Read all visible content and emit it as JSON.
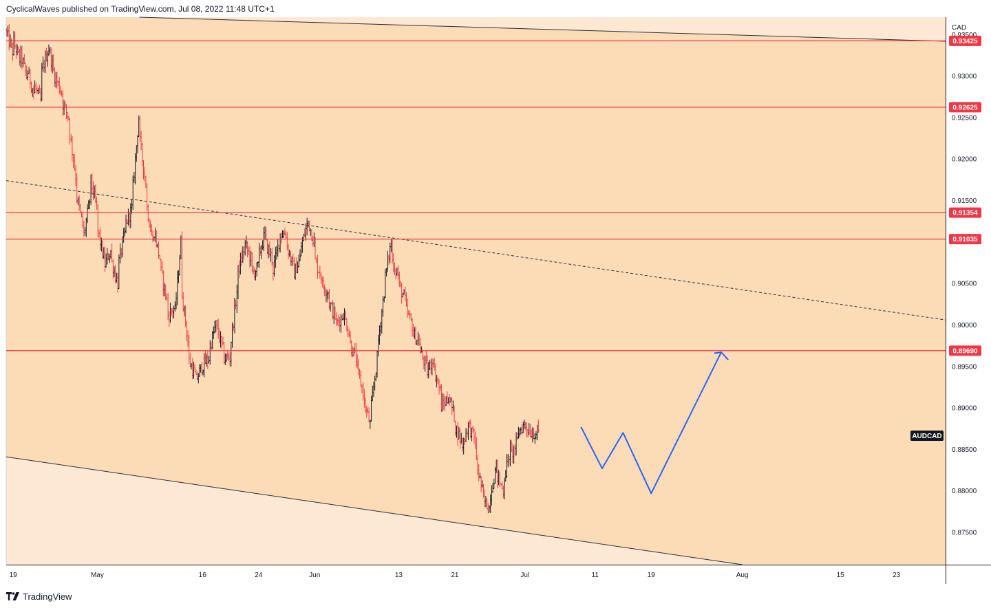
{
  "header": {
    "publish_line": "CyclicalWaves published on TradingView.com, Jul 08, 2022 11:48 UTC+1"
  },
  "footer": {
    "brand": "TradingView",
    "logo_icon": "tradingview-logo-icon"
  },
  "chart_data": {
    "type": "ohlc",
    "symbol": "AUDCAD",
    "currency": "CAD",
    "colors": {
      "channel_fill": "#fbdcb6",
      "outside_fill": "#fde8d4",
      "up_bar": "#131722",
      "down_bar": "#f23645",
      "level_line": "#f23645",
      "projection": "#2962ff",
      "label_dark": "#131722"
    },
    "y_axis": {
      "min": 0.8711,
      "max": 0.9371,
      "ticks": [
        "0.87500",
        "0.88000",
        "0.88500",
        "0.89000",
        "0.89500",
        "0.90000",
        "0.90500",
        "0.91500",
        "0.92000",
        "0.92500",
        "0.93000",
        "0.93500"
      ]
    },
    "x_axis": {
      "start": "2022-04-18",
      "end": "2022-08-30",
      "ticks": [
        {
          "date": "2022-04-19",
          "label": "19"
        },
        {
          "date": "2022-05-01",
          "label": "May"
        },
        {
          "date": "2022-05-16",
          "label": "16"
        },
        {
          "date": "2022-05-24",
          "label": "24"
        },
        {
          "date": "2022-06-01",
          "label": "Jun"
        },
        {
          "date": "2022-06-13",
          "label": "13"
        },
        {
          "date": "2022-06-21",
          "label": "21"
        },
        {
          "date": "2022-07-01",
          "label": "Jul"
        },
        {
          "date": "2022-07-11",
          "label": "11"
        },
        {
          "date": "2022-07-19",
          "label": "19"
        },
        {
          "date": "2022-08-01",
          "label": "Aug"
        },
        {
          "date": "2022-08-15",
          "label": "15"
        },
        {
          "date": "2022-08-23",
          "label": "23"
        }
      ]
    },
    "horizontal_levels": [
      "0.93425",
      "0.92625",
      "0.91354",
      "0.91035",
      "0.89690"
    ],
    "channel_upper": [
      {
        "date": "2022-05-07",
        "price": 0.9371
      },
      {
        "date": "2022-08-30",
        "price": 0.9342
      }
    ],
    "channel_lower": [
      {
        "date": "2022-04-18",
        "price": 0.8841
      },
      {
        "date": "2022-08-01",
        "price": 0.8711
      }
    ],
    "midline": [
      {
        "date": "2022-04-18",
        "price": 0.9174
      },
      {
        "date": "2022-08-30",
        "price": 0.9006
      }
    ],
    "projection_path": [
      {
        "date": "2022-07-09",
        "price": 0.8877
      },
      {
        "date": "2022-07-12",
        "price": 0.8827
      },
      {
        "date": "2022-07-15",
        "price": 0.887
      },
      {
        "date": "2022-07-19",
        "price": 0.8797
      },
      {
        "date": "2022-07-29",
        "price": 0.8967
      }
    ],
    "projection_arrowhead": [
      {
        "date": "2022-07-28",
        "price": 0.8966
      },
      {
        "date": "2022-07-29",
        "price": 0.8967
      },
      {
        "date": "2022-07-30",
        "price": 0.8958
      }
    ],
    "price_path_start": "2022-04-18",
    "price_path": [
      [
        0.9355,
        0.933
      ],
      [
        0.9345,
        0.932
      ],
      [
        0.933,
        0.93
      ],
      [
        0.931,
        0.928
      ],
      [
        0.929,
        0.927
      ],
      [
        0.93,
        0.933
      ],
      [
        0.934,
        0.93
      ],
      [
        0.93,
        0.928
      ],
      [
        0.927,
        0.925
      ],
      [
        0.924,
        0.918
      ],
      [
        0.916,
        0.912
      ],
      [
        0.91,
        0.915
      ],
      [
        0.918,
        0.914
      ],
      [
        0.912,
        0.908
      ],
      [
        0.907,
        0.909
      ],
      [
        0.908,
        0.905
      ],
      [
        0.907,
        0.911
      ],
      [
        0.912,
        0.914
      ],
      [
        0.915,
        0.925
      ],
      [
        0.923,
        0.917
      ],
      [
        0.915,
        0.91
      ],
      [
        0.912,
        0.908
      ],
      [
        0.907,
        0.903
      ],
      [
        0.901,
        0.902
      ],
      [
        0.9,
        0.91
      ],
      [
        0.905,
        0.898
      ],
      [
        0.896,
        0.894
      ],
      [
        0.893,
        0.895
      ],
      [
        0.895,
        0.896
      ],
      [
        0.897,
        0.9
      ],
      [
        0.9,
        0.897
      ],
      [
        0.896,
        0.896
      ],
      [
        0.897,
        0.904
      ],
      [
        0.906,
        0.909
      ],
      [
        0.91,
        0.908
      ],
      [
        0.906,
        0.907
      ],
      [
        0.908,
        0.911
      ],
      [
        0.91,
        0.908
      ],
      [
        0.906,
        0.91
      ],
      [
        0.911,
        0.911
      ],
      [
        0.91,
        0.907
      ],
      [
        0.906,
        0.908
      ],
      [
        0.909,
        0.912
      ],
      [
        0.913,
        0.91
      ],
      [
        0.908,
        0.906
      ],
      [
        0.905,
        0.904
      ],
      [
        0.903,
        0.901
      ],
      [
        0.9,
        0.901
      ],
      [
        0.902,
        0.899
      ],
      [
        0.898,
        0.896
      ],
      [
        0.895,
        0.892
      ],
      [
        0.891,
        0.888
      ],
      [
        0.889,
        0.896
      ],
      [
        0.897,
        0.904
      ],
      [
        0.905,
        0.91
      ],
      [
        0.908,
        0.906
      ],
      [
        0.905,
        0.903
      ],
      [
        0.902,
        0.9
      ],
      [
        0.899,
        0.898
      ],
      [
        0.897,
        0.895
      ],
      [
        0.894,
        0.896
      ],
      [
        0.895,
        0.892
      ],
      [
        0.89,
        0.891
      ],
      [
        0.892,
        0.889
      ],
      [
        0.888,
        0.886
      ],
      [
        0.885,
        0.888
      ],
      [
        0.888,
        0.886
      ],
      [
        0.884,
        0.88
      ],
      [
        0.879,
        0.878
      ],
      [
        0.879,
        0.883
      ],
      [
        0.882,
        0.88
      ],
      [
        0.881,
        0.885
      ],
      [
        0.884,
        0.886
      ],
      [
        0.887,
        0.888
      ],
      [
        0.888,
        0.887
      ],
      [
        0.887,
        0.887
      ]
    ]
  }
}
